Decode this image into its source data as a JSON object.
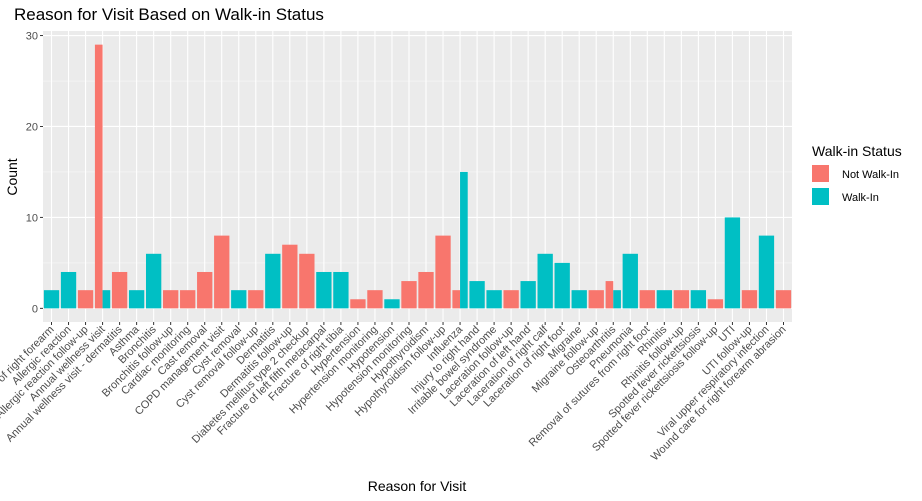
{
  "chart_data": {
    "type": "bar",
    "title": "Reason for Visit Based on Walk-in Status",
    "xlabel": "Reason for Visit",
    "ylabel": "Count",
    "ylim": [
      -1.5,
      30.5
    ],
    "yticks": [
      0,
      10,
      20,
      30
    ],
    "grid": true,
    "legend": {
      "title": "Walk-in Status",
      "position": "right",
      "entries": [
        {
          "name": "Not Walk-In",
          "color": "#F8766D"
        },
        {
          "name": "Walk-In",
          "color": "#00BFC4"
        }
      ]
    },
    "categories": [
      "Abrasion of right forearm",
      "Allergic reaction",
      "Allergic reaction follow-up",
      "Annual wellness visit",
      "Annual wellness visit - dermatitis",
      "Asthma",
      "Bronchitis",
      "Bronchitis follow-up",
      "Cardiac monitoring",
      "Cast removal",
      "COPD management visit",
      "Cyst removal",
      "Cyst removal follow-up",
      "Dermatitis",
      "Dermatitis follow-up",
      "Diabetes mellitus type 2 checkup",
      "Fracture of left fifth metacarpal",
      "Fracture of right tibia",
      "Hypertension",
      "Hypertension monitoring",
      "Hypotension",
      "Hypotension monitoring",
      "Hypothyroidism",
      "Hypothyroidism follow-up",
      "Influenza",
      "Injury to right hand",
      "Irritable bowel syndrome",
      "Laceration follow-up",
      "Laceration of left hand",
      "Laceration of right calf",
      "Laceration of right foot",
      "Migraine",
      "Migraine follow-up",
      "Osteoarthritis",
      "Pneumonia",
      "Removal of sutures from right foot",
      "Rhinitis",
      "Rhinitis follow-up",
      "Spotted fever rickettsiosis",
      "Spotted fever rickettsiosis follow-up",
      "UTI",
      "UTI follow-up",
      "Viral upper respiratory infection",
      "Wound care for right forearm abrasion"
    ],
    "series": [
      {
        "name": "Not Walk-In",
        "color": "#F8766D",
        "values": [
          0,
          0,
          2,
          29,
          4,
          0,
          0,
          2,
          2,
          4,
          8,
          0,
          2,
          0,
          7,
          6,
          0,
          0,
          1,
          2,
          0,
          3,
          4,
          8,
          2,
          0,
          0,
          2,
          0,
          0,
          0,
          0,
          2,
          3,
          0,
          2,
          0,
          2,
          0,
          1,
          0,
          2,
          0,
          2
        ]
      },
      {
        "name": "Walk-In",
        "color": "#00BFC4",
        "values": [
          2,
          4,
          0,
          2,
          0,
          2,
          6,
          0,
          0,
          0,
          0,
          2,
          0,
          6,
          0,
          0,
          4,
          4,
          0,
          0,
          1,
          0,
          0,
          0,
          15,
          3,
          2,
          0,
          3,
          6,
          5,
          2,
          0,
          2,
          6,
          0,
          2,
          0,
          2,
          0,
          10,
          0,
          8,
          0
        ]
      }
    ]
  }
}
